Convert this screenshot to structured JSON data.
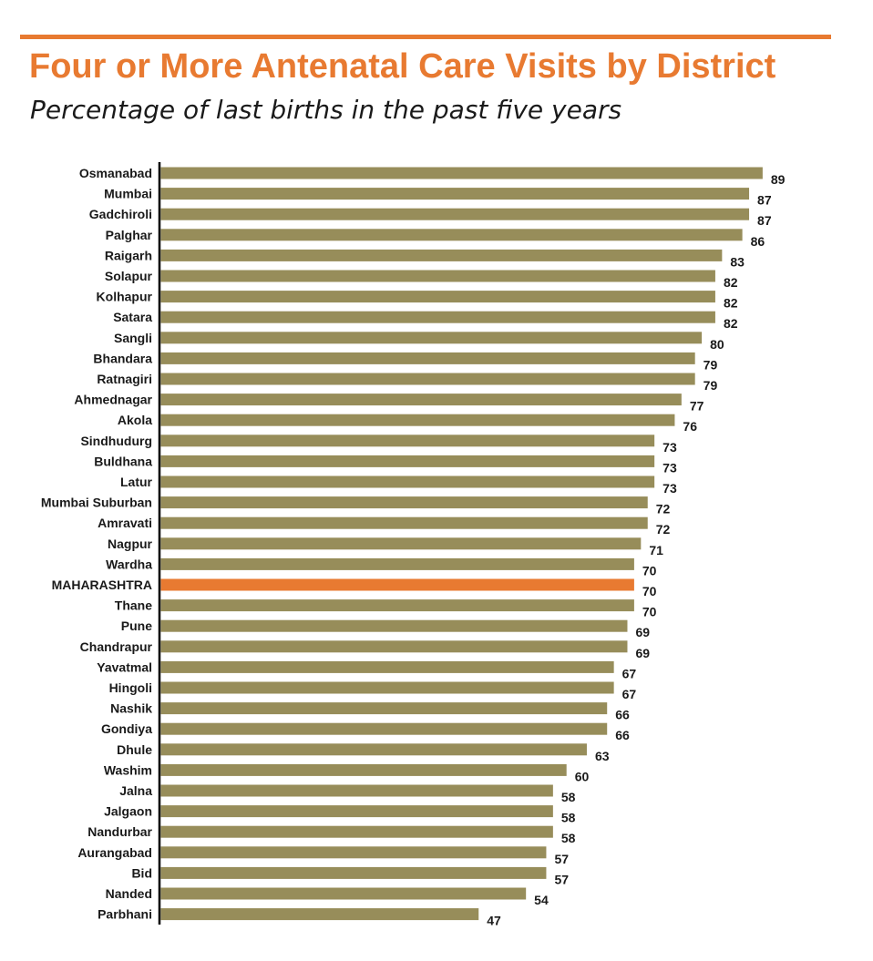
{
  "title": "Four or More Antenatal Care Visits by District",
  "subtitle": "Percentage of last births in the past five years",
  "colors": {
    "accent": "#e87a31",
    "bar": "#978d5a",
    "highlight": "#e87a31",
    "text": "#1a1a1a"
  },
  "chart_data": {
    "type": "bar",
    "orientation": "horizontal",
    "title": "Four or More Antenatal Care Visits by District",
    "subtitle": "Percentage of last births in the past five years",
    "xlabel": "",
    "ylabel": "",
    "xlim": [
      0,
      100
    ],
    "grid": false,
    "highlight": "MAHARASHTRA",
    "categories": [
      "Osmanabad",
      "Mumbai",
      "Gadchiroli",
      "Palghar",
      "Raigarh",
      "Solapur",
      "Kolhapur",
      "Satara",
      "Sangli",
      "Bhandara",
      "Ratnagiri",
      "Ahmednagar",
      "Akola",
      "Sindhudurg",
      "Buldhana",
      "Latur",
      "Mumbai Suburban",
      "Amravati",
      "Nagpur",
      "Wardha",
      "MAHARASHTRA",
      "Thane",
      "Pune",
      "Chandrapur",
      "Yavatmal",
      "Hingoli",
      "Nashik",
      "Gondiya",
      "Dhule",
      "Washim",
      "Jalna",
      "Jalgaon",
      "Nandurbar",
      "Aurangabad",
      "Bid",
      "Nanded",
      "Parbhani"
    ],
    "values": [
      89,
      87,
      87,
      86,
      83,
      82,
      82,
      82,
      80,
      79,
      79,
      77,
      76,
      73,
      73,
      73,
      72,
      72,
      71,
      70,
      70,
      70,
      69,
      69,
      67,
      67,
      66,
      66,
      63,
      60,
      58,
      58,
      58,
      57,
      57,
      54,
      47
    ]
  }
}
